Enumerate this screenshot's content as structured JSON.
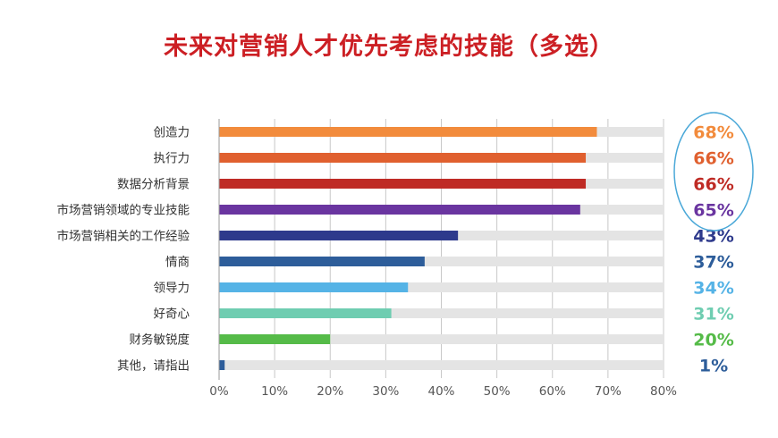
{
  "title": "未来对营销人才优先考虑的技能（多选）",
  "chart_data": {
    "type": "bar",
    "orientation": "horizontal",
    "title": "未来对营销人才优先考虑的技能（多选）",
    "categories": [
      "创造力",
      "执行力",
      "数据分析背景",
      "市场营销领域的专业技能",
      "市场营销相关的工作经验",
      "情商",
      "领导力",
      "好奇心",
      "财务敏锐度",
      "其他，请指出"
    ],
    "values": [
      68,
      66,
      66,
      65,
      43,
      37,
      34,
      31,
      20,
      1
    ],
    "value_labels": [
      "68%",
      "66%",
      "66%",
      "65%",
      "43%",
      "37%",
      "34%",
      "31%",
      "20%",
      "1%"
    ],
    "colors": [
      "#f28b3c",
      "#e0602f",
      "#bf2b25",
      "#6a35a0",
      "#2e3a8c",
      "#2d5d9a",
      "#55b3e6",
      "#6fcdb1",
      "#55bb48",
      "#2d5d9a"
    ],
    "label_colors": [
      "#f28b3c",
      "#e0602f",
      "#bf2b25",
      "#6a35a0",
      "#2e3a8c",
      "#2d5d9a",
      "#55b3e6",
      "#6fcdb1",
      "#55bb48",
      "#2d5d9a"
    ],
    "xticks": [
      "0%",
      "10%",
      "20%",
      "30%",
      "40%",
      "50%",
      "60%",
      "70%",
      "80%"
    ],
    "xlim": [
      0,
      80
    ],
    "grid": true,
    "background_bar_color": "#e4e4e4",
    "highlight_ellipse_color": "#4aa8d8",
    "highlight_ellipse_covers": [
      "创造力",
      "执行力",
      "数据分析背景",
      "市场营销领域的专业技能"
    ]
  }
}
